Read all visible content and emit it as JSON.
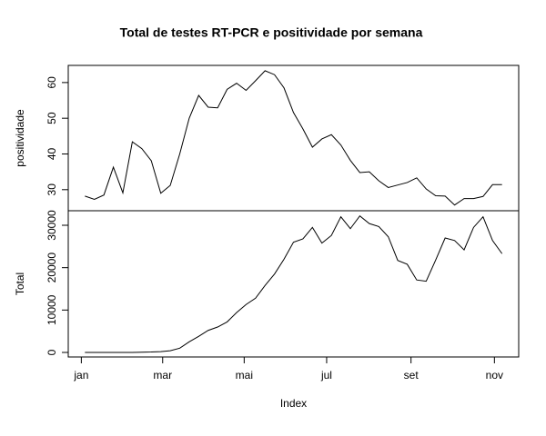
{
  "chart_data": [
    {
      "type": "line",
      "title": "Total de testes RT-PCR e positividade por semana",
      "ylabel": "positividade",
      "x": [
        1,
        2,
        3,
        4,
        5,
        6,
        7,
        8,
        9,
        10,
        11,
        12,
        13,
        14,
        15,
        16,
        17,
        18,
        19,
        20,
        21,
        22,
        23,
        24,
        25,
        26,
        27,
        28,
        29,
        30,
        31,
        32,
        33,
        34,
        35,
        36,
        37,
        38,
        39,
        40,
        41,
        42,
        43,
        44,
        45
      ],
      "values": [
        28.2,
        27.3,
        28.5,
        36.3,
        29.1,
        43.4,
        41.5,
        38.1,
        29.0,
        31.2,
        40,
        50,
        56.4,
        53.1,
        52.9,
        58.1,
        59.8,
        57.8,
        60.5,
        63.3,
        62.2,
        58.5,
        51.6,
        47,
        41.9,
        44.2,
        45.4,
        42.5,
        38.2,
        34.8,
        35,
        32.5,
        30.6,
        31.3,
        32,
        33.3,
        30.2,
        28.3,
        28.2,
        25.7,
        27.5,
        27.5,
        28.1,
        31.4,
        31.4
      ],
      "color": "#000000",
      "xlim": [
        -0.76,
        46.76
      ],
      "ylim": [
        24.1,
        64.8
      ],
      "yticks": [
        30,
        40,
        50,
        60
      ]
    },
    {
      "type": "line",
      "ylabel": "Total",
      "xlabel": "Index",
      "x": [
        1,
        2,
        3,
        4,
        5,
        6,
        7,
        8,
        9,
        10,
        11,
        12,
        13,
        14,
        15,
        16,
        17,
        18,
        19,
        20,
        21,
        22,
        23,
        24,
        25,
        26,
        27,
        28,
        29,
        30,
        31,
        32,
        33,
        34,
        35,
        36,
        37,
        38,
        39,
        40,
        41,
        42,
        43,
        44,
        45
      ],
      "values": [
        0,
        0,
        0,
        0,
        0,
        0,
        50,
        100,
        200,
        400,
        1000,
        2500,
        3800,
        5200,
        6000,
        7200,
        9400,
        11300,
        12800,
        15800,
        18500,
        22000,
        26000,
        26800,
        29500,
        25800,
        27600,
        32000,
        29200,
        32200,
        30400,
        29700,
        27300,
        21700,
        20800,
        17100,
        16800,
        21800,
        27000,
        26400,
        24200,
        29500,
        32000,
        26400,
        23300
      ],
      "color": "#000000",
      "xlim": [
        -0.76,
        46.76
      ],
      "ylim": [
        -1070,
        33430
      ],
      "yticks": [
        0,
        10000,
        20000,
        30000
      ],
      "xticks": [
        {
          "value": 0.62,
          "label": "jan"
        },
        {
          "value": 9.2,
          "label": "mar"
        },
        {
          "value": 17.8,
          "label": "mai"
        },
        {
          "value": 26.5,
          "label": "jul"
        },
        {
          "value": 35.4,
          "label": "set"
        },
        {
          "value": 44.2,
          "label": "nov"
        }
      ]
    }
  ]
}
